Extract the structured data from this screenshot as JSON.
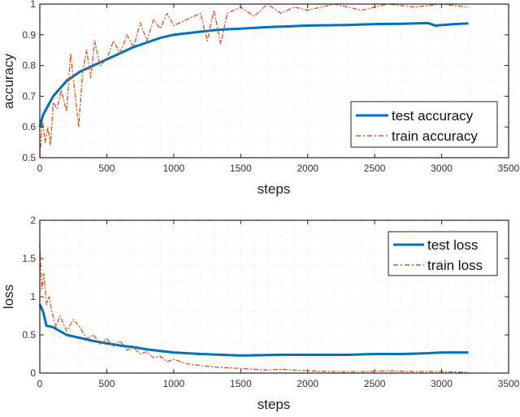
{
  "colors": {
    "test": "#0072BD",
    "train": "#D95319"
  },
  "chart_data": [
    {
      "type": "line",
      "xlabel": "steps",
      "ylabel": "accuracy",
      "xlim": [
        0,
        3500
      ],
      "ylim": [
        0.5,
        1
      ],
      "xticks": [
        0,
        500,
        1000,
        1500,
        2000,
        2500,
        3000,
        3500
      ],
      "yticks": [
        0.5,
        0.6,
        0.7,
        0.8,
        0.9,
        1
      ],
      "ytick_labels": [
        "0.5",
        "0.6",
        "0.7",
        "0.8",
        "0.9",
        "1"
      ],
      "grid": true,
      "legend_position": "right",
      "series": [
        {
          "name": "test accuracy",
          "key": "test",
          "style": "solid",
          "x": [
            0,
            25,
            50,
            100,
            150,
            200,
            300,
            400,
            500,
            600,
            700,
            800,
            900,
            1000,
            1100,
            1200,
            1300,
            1400,
            1500,
            1700,
            2000,
            2300,
            2500,
            2700,
            2900,
            2950,
            3100,
            3200
          ],
          "y": [
            0.6,
            0.64,
            0.66,
            0.7,
            0.725,
            0.75,
            0.78,
            0.8,
            0.82,
            0.84,
            0.86,
            0.875,
            0.89,
            0.9,
            0.905,
            0.91,
            0.915,
            0.918,
            0.92,
            0.925,
            0.93,
            0.932,
            0.935,
            0.936,
            0.938,
            0.93,
            0.935,
            0.937
          ]
        },
        {
          "name": "train accuracy",
          "key": "train",
          "style": "dashdot",
          "x": [
            0,
            20,
            40,
            60,
            80,
            100,
            130,
            160,
            200,
            230,
            260,
            290,
            320,
            350,
            380,
            410,
            450,
            500,
            550,
            600,
            650,
            700,
            750,
            800,
            850,
            900,
            950,
            1000,
            1100,
            1200,
            1250,
            1300,
            1350,
            1400,
            1500,
            1600,
            1700,
            1800,
            1900,
            2000,
            2200,
            2400,
            2600,
            2800,
            3000,
            3200
          ],
          "y": [
            0.5,
            0.62,
            0.55,
            0.6,
            0.54,
            0.68,
            0.66,
            0.72,
            0.65,
            0.84,
            0.72,
            0.6,
            0.78,
            0.85,
            0.76,
            0.88,
            0.8,
            0.82,
            0.88,
            0.84,
            0.9,
            0.86,
            0.94,
            0.88,
            0.95,
            0.92,
            0.97,
            0.93,
            0.95,
            0.97,
            0.88,
            0.98,
            0.87,
            0.97,
            0.99,
            0.96,
            1.0,
            0.97,
            0.99,
            0.98,
            1.0,
            0.98,
            1.0,
            0.99,
            1.0,
            0.99
          ]
        }
      ]
    },
    {
      "type": "line",
      "xlabel": "steps",
      "ylabel": "loss",
      "xlim": [
        0,
        3500
      ],
      "ylim": [
        0,
        2
      ],
      "xticks": [
        0,
        500,
        1000,
        1500,
        2000,
        2500,
        3000,
        3500
      ],
      "yticks": [
        0,
        0.5,
        1,
        1.5,
        2
      ],
      "ytick_labels": [
        "0",
        "0.5",
        "1",
        "1.5",
        "2"
      ],
      "grid": true,
      "legend_position": "top-right",
      "series": [
        {
          "name": "test loss",
          "key": "test",
          "style": "solid",
          "x": [
            0,
            25,
            50,
            100,
            150,
            200,
            300,
            400,
            500,
            600,
            700,
            800,
            900,
            1000,
            1200,
            1500,
            1800,
            2000,
            2300,
            2500,
            2700,
            2900,
            3000,
            3200
          ],
          "y": [
            0.9,
            0.8,
            0.62,
            0.6,
            0.55,
            0.5,
            0.46,
            0.42,
            0.39,
            0.36,
            0.34,
            0.31,
            0.29,
            0.27,
            0.25,
            0.23,
            0.24,
            0.24,
            0.24,
            0.25,
            0.25,
            0.26,
            0.27,
            0.27
          ]
        },
        {
          "name": "train loss",
          "key": "train",
          "style": "dashdot",
          "x": [
            0,
            15,
            30,
            50,
            70,
            90,
            120,
            150,
            200,
            250,
            300,
            350,
            400,
            450,
            500,
            550,
            600,
            650,
            700,
            750,
            800,
            850,
            900,
            950,
            1000,
            1100,
            1200,
            1300,
            1400,
            1500,
            1600,
            1700,
            1800,
            2000,
            2200,
            2400,
            2600,
            2800,
            3000,
            3200
          ],
          "y": [
            1.7,
            1.1,
            1.3,
            0.9,
            1.0,
            0.8,
            0.6,
            0.75,
            0.55,
            0.7,
            0.6,
            0.45,
            0.5,
            0.38,
            0.45,
            0.35,
            0.42,
            0.3,
            0.33,
            0.25,
            0.28,
            0.2,
            0.22,
            0.15,
            0.18,
            0.12,
            0.1,
            0.08,
            0.07,
            0.06,
            0.05,
            0.04,
            0.05,
            0.03,
            0.02,
            0.02,
            0.03,
            0.02,
            0.02,
            0.01
          ]
        }
      ]
    }
  ]
}
